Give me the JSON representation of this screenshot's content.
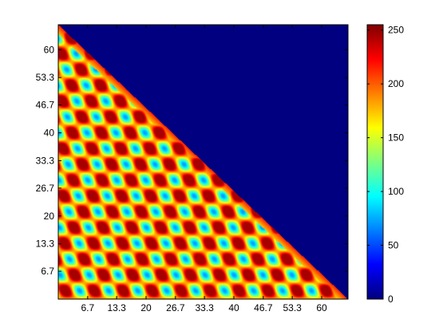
{
  "chart_data": {
    "type": "heatmap",
    "title": "",
    "xlabel": "",
    "ylabel": "",
    "x_ticks": [
      6.7,
      13.3,
      20,
      26.7,
      33.3,
      40,
      46.7,
      53.3,
      60
    ],
    "y_ticks": [
      6.7,
      13.3,
      20,
      26.7,
      33.3,
      40,
      46.7,
      53.3,
      60
    ],
    "x_tick_labels": [
      "6.7",
      "13.3",
      "20",
      "26.7",
      "33.3",
      "40",
      "46.7",
      "53.3",
      "60"
    ],
    "y_tick_labels": [
      "6.7",
      "13.3",
      "20",
      "26.7",
      "33.3",
      "40",
      "46.7",
      "53.3",
      "60"
    ],
    "xlim": [
      0,
      66
    ],
    "ylim": [
      0,
      66
    ],
    "colormap": "jet",
    "clim": [
      0,
      255
    ],
    "colorbar_ticks": [
      0,
      50,
      100,
      150,
      200,
      250
    ],
    "colorbar_tick_labels": [
      "0",
      "50",
      "100",
      "150",
      "200",
      "250"
    ],
    "masked_region": "upper-right triangle (x + y > 66)",
    "masked_value": 0,
    "pattern": {
      "description": "periodic lattice of tilted elliptical peaks",
      "x_period": 6.6,
      "y_period": 7.6,
      "peak_value": 245,
      "background_value": 105
    }
  }
}
